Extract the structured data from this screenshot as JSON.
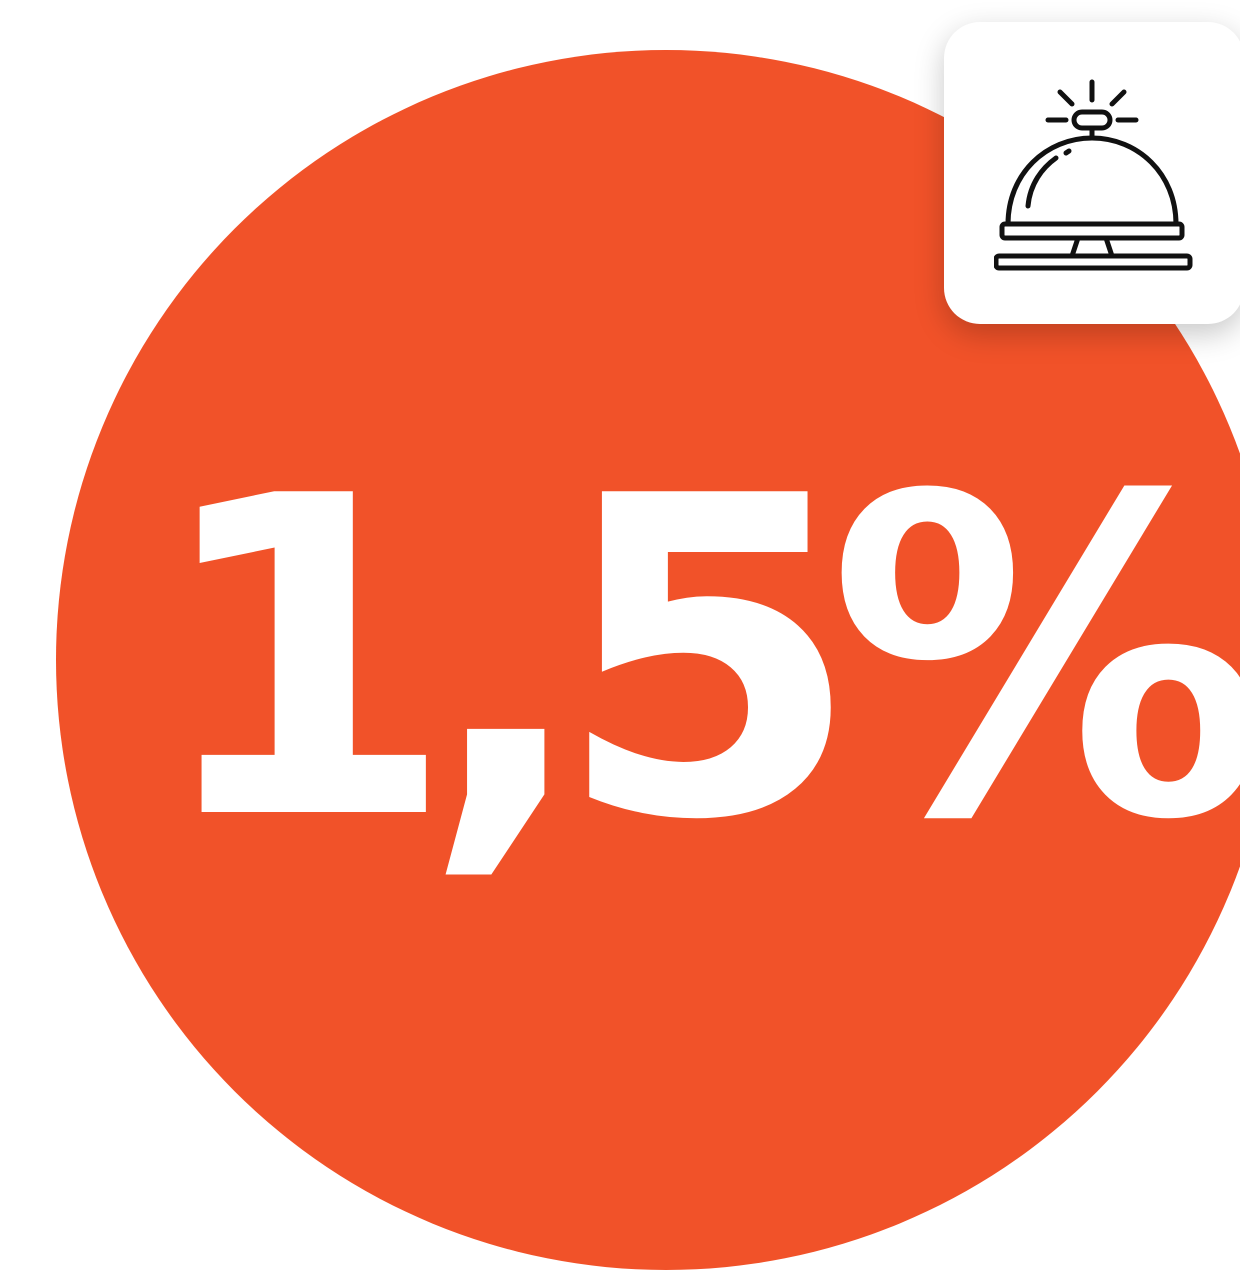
{
  "badge": {
    "value": "1,5%",
    "background_color": "#f15229",
    "text_color": "#ffffff"
  },
  "icon_card": {
    "icon": "service-bell-icon",
    "background_color": "#ffffff"
  }
}
